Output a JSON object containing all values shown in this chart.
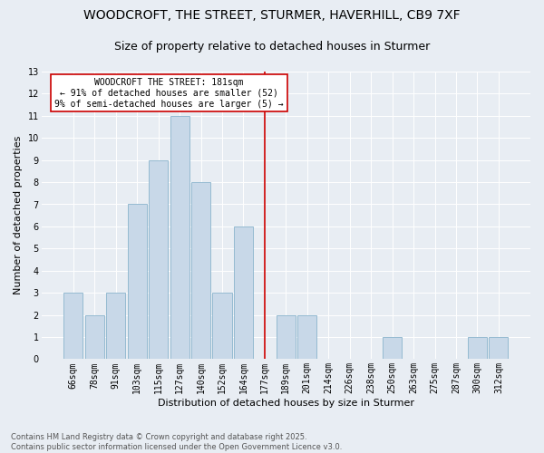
{
  "title": "WOODCROFT, THE STREET, STURMER, HAVERHILL, CB9 7XF",
  "subtitle": "Size of property relative to detached houses in Sturmer",
  "xlabel": "Distribution of detached houses by size in Sturmer",
  "ylabel": "Number of detached properties",
  "categories": [
    "66sqm",
    "78sqm",
    "91sqm",
    "103sqm",
    "115sqm",
    "127sqm",
    "140sqm",
    "152sqm",
    "164sqm",
    "177sqm",
    "189sqm",
    "201sqm",
    "214sqm",
    "226sqm",
    "238sqm",
    "250sqm",
    "263sqm",
    "275sqm",
    "287sqm",
    "300sqm",
    "312sqm"
  ],
  "values": [
    3,
    2,
    3,
    7,
    9,
    11,
    8,
    3,
    6,
    0,
    2,
    2,
    0,
    0,
    0,
    1,
    0,
    0,
    0,
    1,
    1
  ],
  "bar_color": "#c8d8e8",
  "bar_edge_color": "#8ab4cc",
  "vline_x_index": 9,
  "vline_color": "#cc0000",
  "annotation_text": "WOODCROFT THE STREET: 181sqm\n← 91% of detached houses are smaller (52)\n9% of semi-detached houses are larger (5) →",
  "annotation_box_color": "#ffffff",
  "annotation_box_edge_color": "#cc0000",
  "ylim": [
    0,
    13
  ],
  "yticks": [
    0,
    1,
    2,
    3,
    4,
    5,
    6,
    7,
    8,
    9,
    10,
    11,
    12,
    13
  ],
  "background_color": "#e8edf3",
  "plot_bg_color": "#e8edf3",
  "footer": "Contains HM Land Registry data © Crown copyright and database right 2025.\nContains public sector information licensed under the Open Government Licence v3.0.",
  "title_fontsize": 10,
  "subtitle_fontsize": 9,
  "xlabel_fontsize": 8,
  "ylabel_fontsize": 8,
  "tick_fontsize": 7,
  "footer_fontsize": 6,
  "annot_fontsize": 7
}
